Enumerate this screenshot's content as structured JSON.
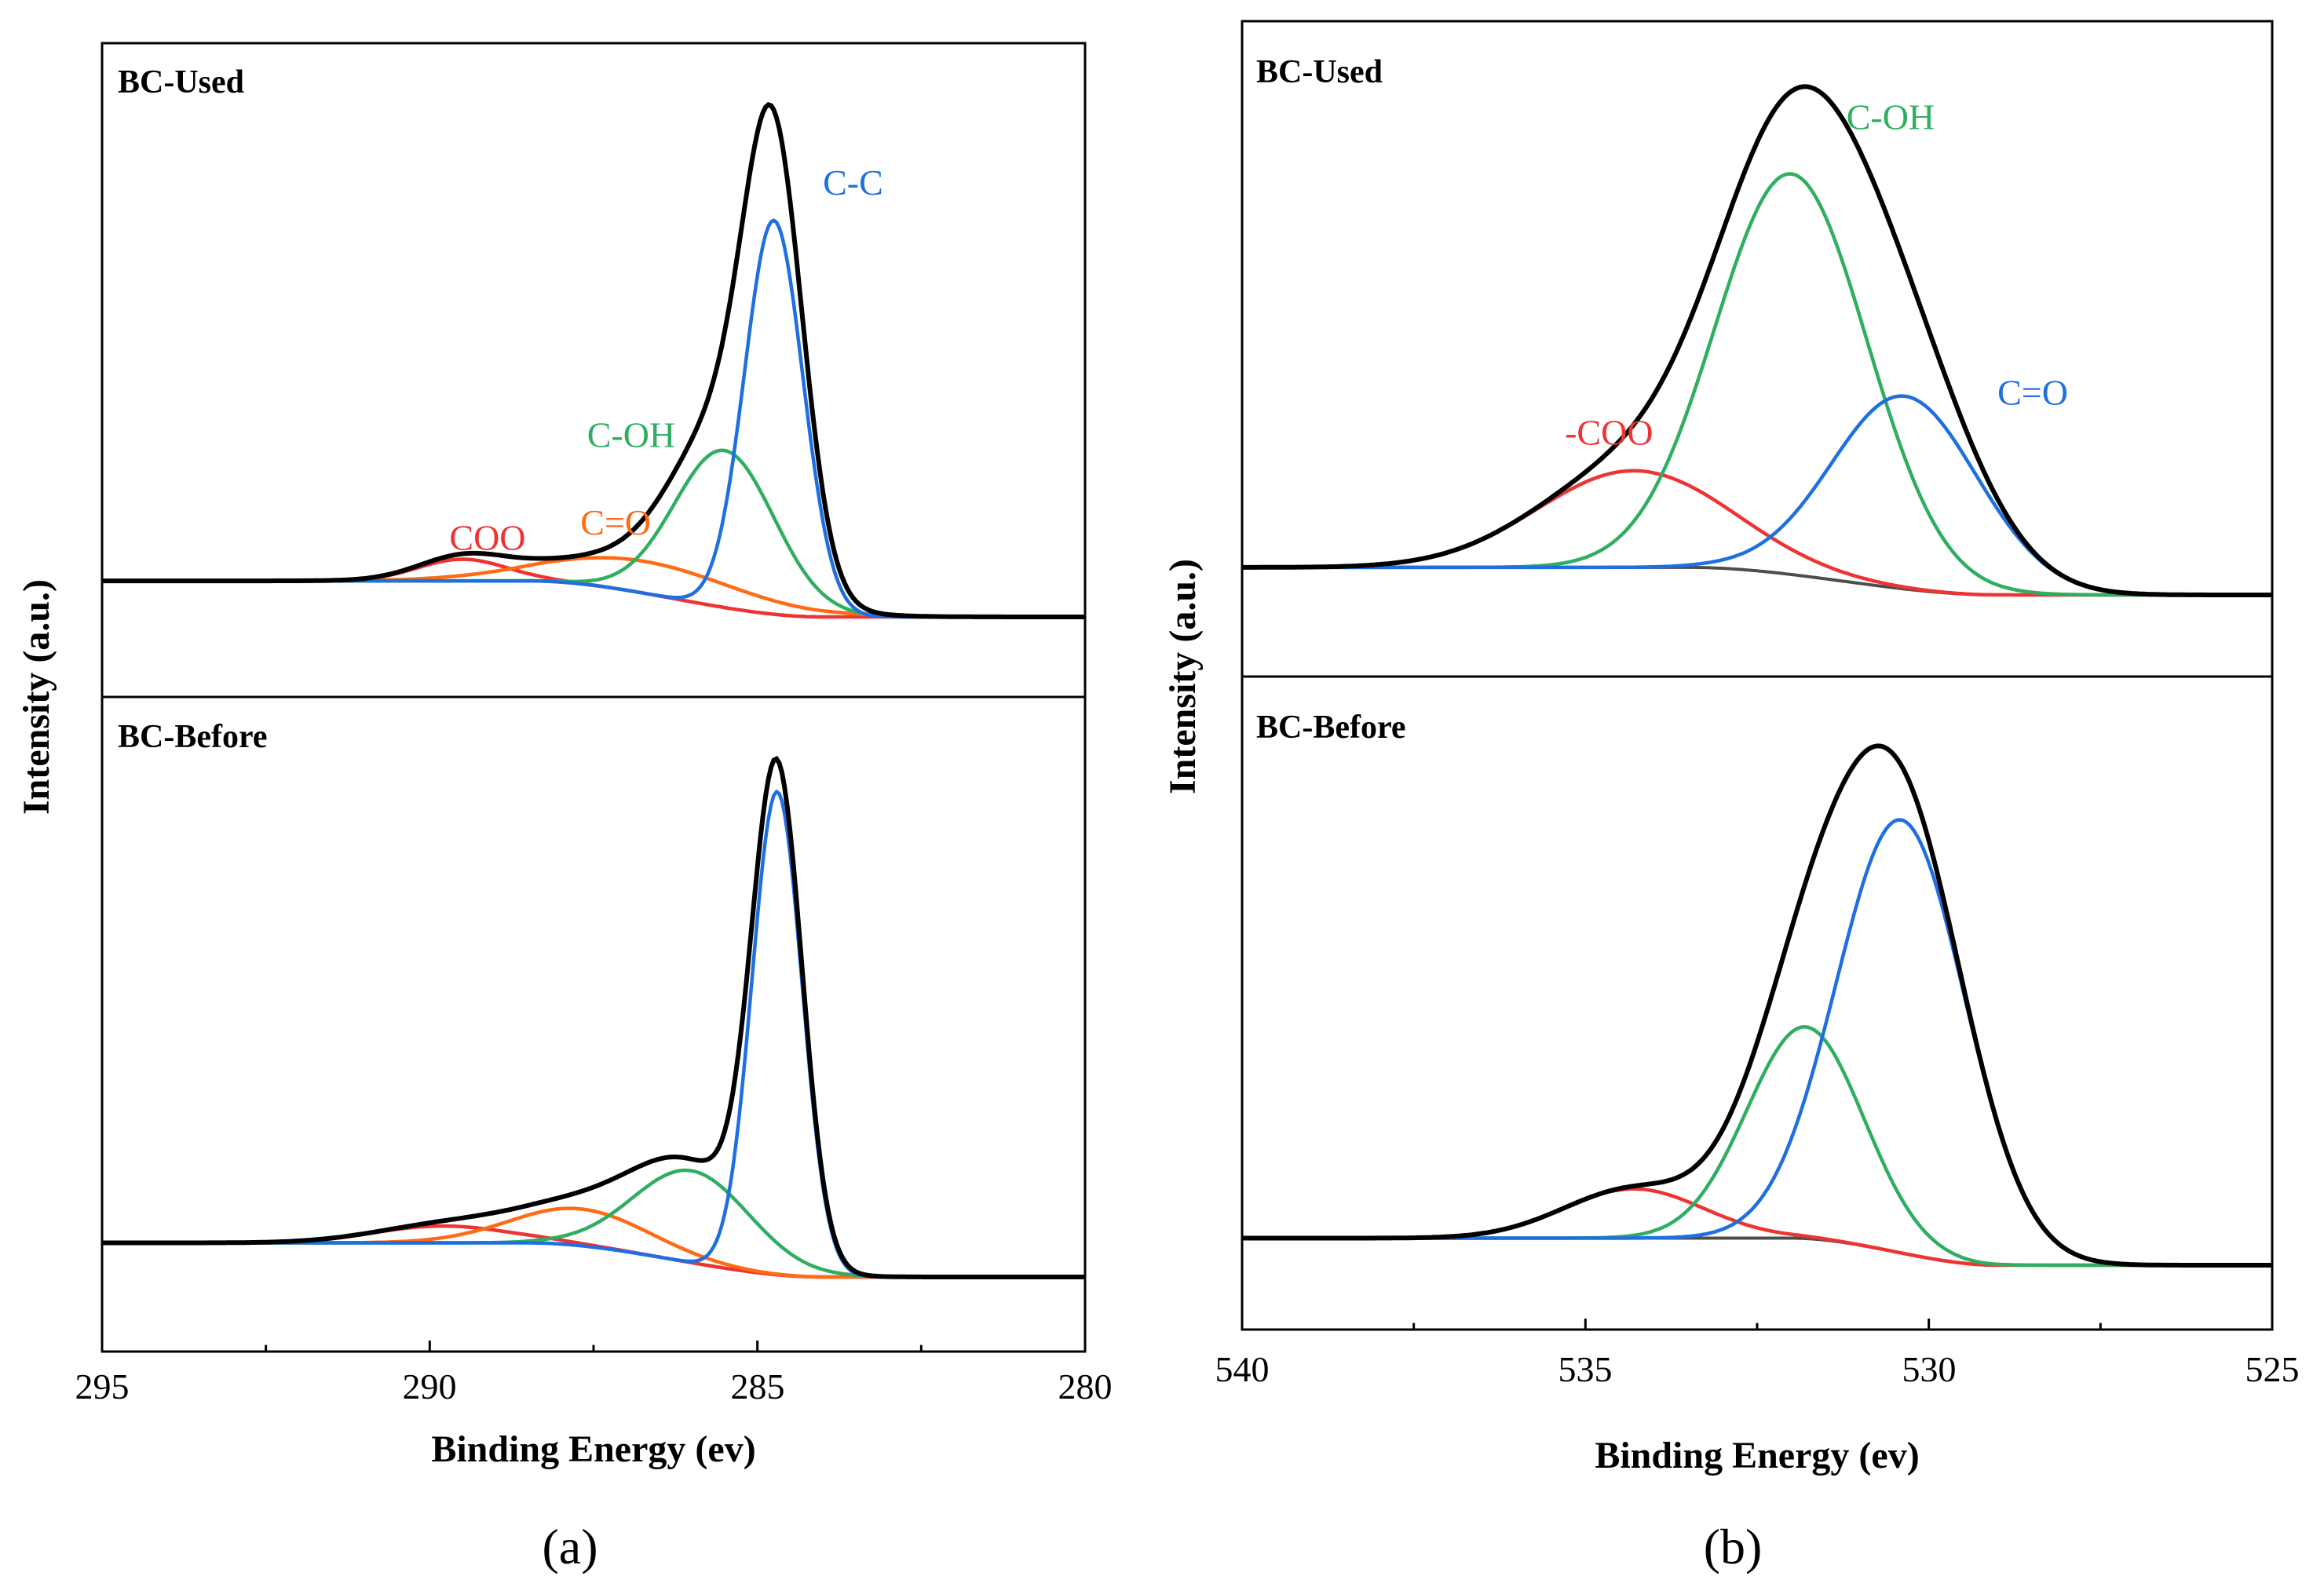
{
  "colors": {
    "envelope": "#000000",
    "background": "#4d4d4d",
    "red": "#ee3333",
    "orange": "#ff6a13",
    "green": "#2fae62",
    "blue": "#1f6fe0"
  },
  "chart_data": [
    {
      "type": "line",
      "id": "a",
      "caption": "(a)",
      "xlabel": "Binding Energy (ev)",
      "ylabel": "Intensity (a.u.)",
      "xlim": [
        295,
        280
      ],
      "x_reversed": true,
      "xticks": [
        "295",
        "290",
        "285",
        "280"
      ],
      "xtick_values": [
        295,
        290,
        285,
        280
      ],
      "xtick_minor": [
        292.5,
        287.5,
        282.5
      ],
      "ylim": [
        0,
        1
      ],
      "panels": [
        {
          "title": "BC-Used",
          "background": {
            "edges": [
              288.5,
              284.0
            ],
            "left": 0.07,
            "right": 0.0,
            "color_key": "red"
          },
          "components": [
            {
              "name": "COO",
              "color_key": "red",
              "center": 289.5,
              "fwhm": 1.6,
              "height": 0.042
            },
            {
              "name": "C=O",
              "color_key": "orange",
              "center": 286.7,
              "fwhm": 3.5,
              "height": 0.062
            },
            {
              "name": "C-OH",
              "color_key": "green",
              "center": 285.5,
              "fwhm": 1.8,
              "height": 0.305
            },
            {
              "name": "C-C",
              "color_key": "blue",
              "center": 284.75,
              "fwhm": 1.05,
              "height": 0.765
            }
          ],
          "labels": [
            {
              "text": "COO",
              "color_key": "red",
              "x": 289.7,
              "y": 0.13
            },
            {
              "text": "C=O",
              "color_key": "orange",
              "x": 287.7,
              "y": 0.16
            },
            {
              "text": "C-OH",
              "color_key": "green",
              "x": 287.6,
              "y": 0.33
            },
            {
              "text": "C-C",
              "color_key": "blue",
              "x": 284.0,
              "y": 0.82
            }
          ]
        },
        {
          "title": "BC-Before",
          "background": {
            "edges": [
              288.5,
              284.0
            ],
            "left": 0.065,
            "right": 0.0,
            "color_key": "red"
          },
          "components": [
            {
              "name": "COO",
              "color_key": "red",
              "center": 289.8,
              "fwhm": 2.5,
              "height": 0.032
            },
            {
              "name": "C=O",
              "color_key": "orange",
              "center": 287.7,
              "fwhm": 2.5,
              "height": 0.07
            },
            {
              "name": "C-OH",
              "color_key": "green",
              "center": 286.0,
              "fwhm": 2.1,
              "height": 0.175
            },
            {
              "name": "C-C",
              "color_key": "blue",
              "center": 284.7,
              "fwhm": 0.9,
              "height": 0.92
            }
          ],
          "labels": []
        }
      ]
    },
    {
      "type": "line",
      "id": "b",
      "caption": "(b)",
      "xlabel": "Binding Energy (ev)",
      "ylabel": "Intensity (a.u.)",
      "xlim": [
        540,
        525
      ],
      "x_reversed": true,
      "xticks": [
        "540",
        "535",
        "530",
        "525"
      ],
      "xtick_values": [
        540,
        535,
        530,
        525
      ],
      "xtick_minor": [
        537.5,
        532.5,
        527.5
      ],
      "ylim": [
        0,
        1
      ],
      "panels": [
        {
          "title": "BC-Used",
          "background": {
            "edges": [
              533.5,
              529.0
            ],
            "left": 0.055,
            "right": 0.0,
            "color_key": "background"
          },
          "components": [
            {
              "name": "-COO",
              "color_key": "red",
              "center": 534.3,
              "fwhm": 3.3,
              "height": 0.193
            },
            {
              "name": "C-OH",
              "color_key": "green",
              "center": 532.0,
              "fwhm": 2.6,
              "height": 0.8
            },
            {
              "name": "C=O",
              "color_key": "blue",
              "center": 530.35,
              "fwhm": 2.5,
              "height": 0.385
            }
          ],
          "labels": [
            {
              "text": "-COO",
              "color_key": "red",
              "x": 535.3,
              "y": 0.3
            },
            {
              "text": "C-OH",
              "color_key": "green",
              "x": 531.2,
              "y": 0.93
            },
            {
              "text": "C=O",
              "color_key": "blue",
              "x": 529.0,
              "y": 0.38
            }
          ]
        },
        {
          "title": "BC-Before",
          "background": {
            "edges": [
              532.0,
              529.0
            ],
            "left": 0.055,
            "right": 0.0,
            "color_key": "background"
          },
          "components": [
            {
              "name": "-COO",
              "color_key": "red",
              "center": 534.3,
              "fwhm": 2.4,
              "height": 0.1
            },
            {
              "name": "C-OH",
              "color_key": "green",
              "center": 531.8,
              "fwhm": 2.0,
              "height": 0.43
            },
            {
              "name": "C=O",
              "color_key": "blue",
              "center": 530.4,
              "fwhm": 2.2,
              "height": 0.88
            }
          ],
          "labels": []
        }
      ]
    }
  ]
}
